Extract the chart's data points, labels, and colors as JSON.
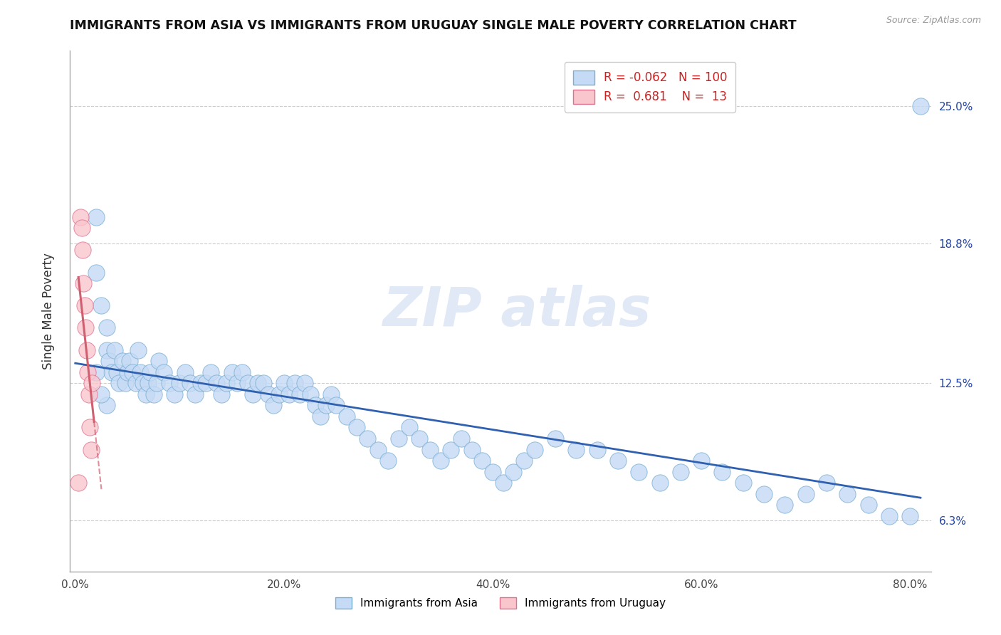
{
  "title": "IMMIGRANTS FROM ASIA VS IMMIGRANTS FROM URUGUAY SINGLE MALE POVERTY CORRELATION CHART",
  "source": "Source: ZipAtlas.com",
  "ylabel_label": "Single Male Poverty",
  "xlim": [
    -0.005,
    0.82
  ],
  "ylim": [
    0.04,
    0.275
  ],
  "y_tick_vals": [
    0.063,
    0.125,
    0.188,
    0.25
  ],
  "y_tick_labels": [
    "6.3%",
    "12.5%",
    "18.8%",
    "25.0%"
  ],
  "x_ticks": [
    0.0,
    0.2,
    0.4,
    0.6,
    0.8
  ],
  "x_tick_labels": [
    "0.0%",
    "20.0%",
    "40.0%",
    "60.0%",
    "80.0%"
  ],
  "asia_fill_color": "#c5daf5",
  "asia_edge_color": "#7aafd4",
  "uruguay_fill_color": "#f9c6ce",
  "uruguay_edge_color": "#e07090",
  "asia_line_color": "#3060b0",
  "uruguay_line_color": "#d06070",
  "legend_R_asia": "-0.062",
  "legend_N_asia": "100",
  "legend_R_uruguay": "0.681",
  "legend_N_uruguay": "13",
  "legend_text_color": "#cc2222",
  "right_axis_color": "#2244aa",
  "asia_x": [
    0.02,
    0.02,
    0.025,
    0.03,
    0.03,
    0.032,
    0.035,
    0.038,
    0.04,
    0.042,
    0.045,
    0.048,
    0.05,
    0.052,
    0.055,
    0.058,
    0.06,
    0.062,
    0.065,
    0.068,
    0.07,
    0.072,
    0.075,
    0.078,
    0.08,
    0.085,
    0.09,
    0.095,
    0.1,
    0.105,
    0.11,
    0.115,
    0.12,
    0.125,
    0.13,
    0.135,
    0.14,
    0.145,
    0.15,
    0.155,
    0.16,
    0.165,
    0.17,
    0.175,
    0.18,
    0.185,
    0.19,
    0.195,
    0.2,
    0.205,
    0.21,
    0.215,
    0.22,
    0.225,
    0.23,
    0.235,
    0.24,
    0.245,
    0.25,
    0.26,
    0.27,
    0.28,
    0.29,
    0.3,
    0.31,
    0.32,
    0.33,
    0.34,
    0.35,
    0.36,
    0.37,
    0.38,
    0.39,
    0.4,
    0.41,
    0.42,
    0.43,
    0.44,
    0.46,
    0.48,
    0.5,
    0.52,
    0.54,
    0.56,
    0.58,
    0.6,
    0.62,
    0.64,
    0.66,
    0.68,
    0.7,
    0.72,
    0.74,
    0.76,
    0.78,
    0.8,
    0.02,
    0.03,
    0.025,
    0.81
  ],
  "asia_y": [
    0.2,
    0.175,
    0.16,
    0.15,
    0.14,
    0.135,
    0.13,
    0.14,
    0.13,
    0.125,
    0.135,
    0.125,
    0.13,
    0.135,
    0.13,
    0.125,
    0.14,
    0.13,
    0.125,
    0.12,
    0.125,
    0.13,
    0.12,
    0.125,
    0.135,
    0.13,
    0.125,
    0.12,
    0.125,
    0.13,
    0.125,
    0.12,
    0.125,
    0.125,
    0.13,
    0.125,
    0.12,
    0.125,
    0.13,
    0.125,
    0.13,
    0.125,
    0.12,
    0.125,
    0.125,
    0.12,
    0.115,
    0.12,
    0.125,
    0.12,
    0.125,
    0.12,
    0.125,
    0.12,
    0.115,
    0.11,
    0.115,
    0.12,
    0.115,
    0.11,
    0.105,
    0.1,
    0.095,
    0.09,
    0.1,
    0.105,
    0.1,
    0.095,
    0.09,
    0.095,
    0.1,
    0.095,
    0.09,
    0.085,
    0.08,
    0.085,
    0.09,
    0.095,
    0.1,
    0.095,
    0.095,
    0.09,
    0.085,
    0.08,
    0.085,
    0.09,
    0.085,
    0.08,
    0.075,
    0.07,
    0.075,
    0.08,
    0.075,
    0.07,
    0.065,
    0.065,
    0.13,
    0.115,
    0.12,
    0.25
  ],
  "uruguay_x": [
    0.003,
    0.005,
    0.006,
    0.007,
    0.008,
    0.009,
    0.01,
    0.011,
    0.012,
    0.013,
    0.014,
    0.015,
    0.016
  ],
  "uruguay_y": [
    0.08,
    0.2,
    0.195,
    0.185,
    0.17,
    0.16,
    0.15,
    0.14,
    0.13,
    0.12,
    0.105,
    0.095,
    0.125
  ]
}
